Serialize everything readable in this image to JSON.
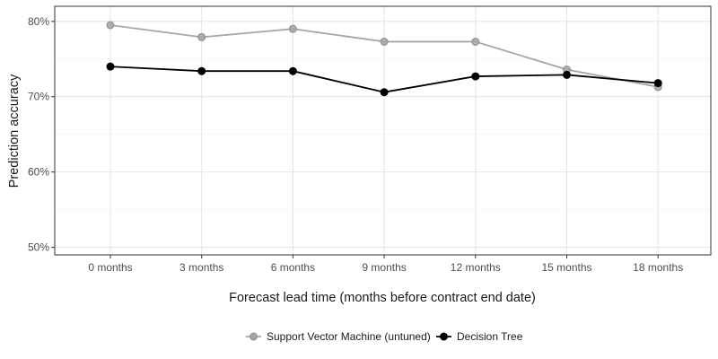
{
  "chart_data": {
    "type": "line",
    "xlabel": "Forecast lead time (months before contract end date)",
    "ylabel": "Prediction accuracy",
    "categories": [
      "0 months",
      "3 months",
      "6 months",
      "9 months",
      "12 months",
      "15 months",
      "18 months"
    ],
    "y_ticks": [
      50,
      60,
      70,
      80
    ],
    "y_tick_labels": [
      "50%",
      "60%",
      "70%",
      "80%"
    ],
    "ylim": [
      49,
      82
    ],
    "y_unit": "%",
    "grid": true,
    "legend_position": "bottom",
    "series": [
      {
        "name": "Support Vector Machine (untuned)",
        "color": "#a6a6a6",
        "values": [
          79.5,
          77.9,
          79.0,
          77.3,
          77.3,
          73.6,
          71.3
        ]
      },
      {
        "name": "Decision Tree",
        "color": "#000000",
        "values": [
          74.0,
          73.4,
          73.4,
          70.6,
          72.7,
          72.9,
          71.8
        ]
      }
    ]
  }
}
